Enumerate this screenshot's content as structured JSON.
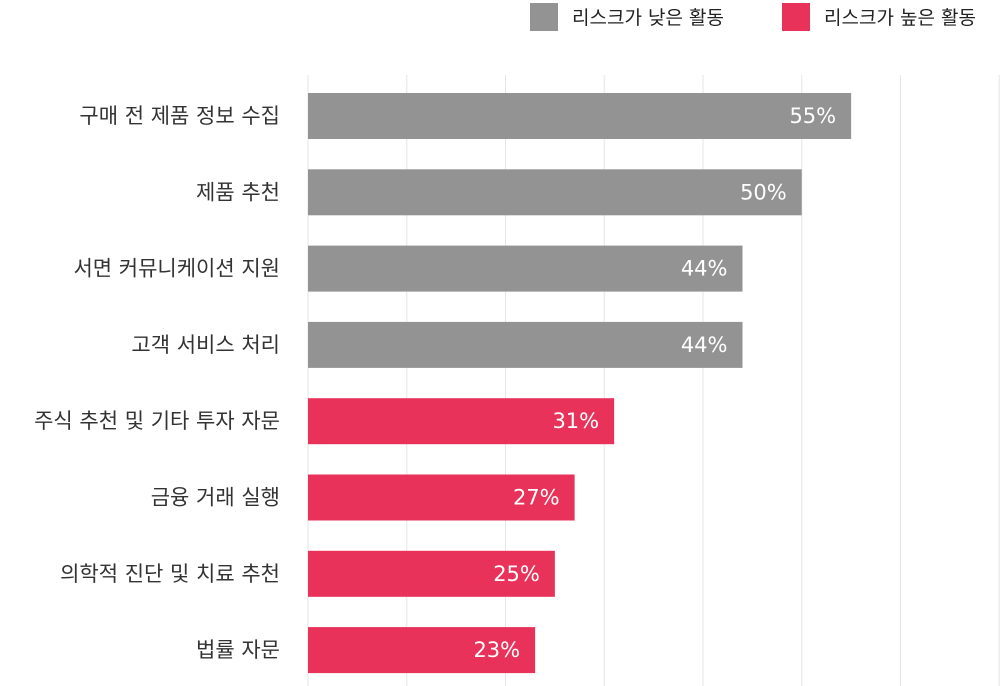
{
  "chart_data": {
    "type": "bar",
    "orientation": "horizontal",
    "categories": [
      "구매 전 제품 정보 수집",
      "제품 추천",
      "서면 커뮤니케이션 지원",
      "고객 서비스 처리",
      "주식 추천 및 기타 투자 자문",
      "금융 거래 실행",
      "의학적 진단 및 치료 추천",
      "법률 자문"
    ],
    "values": [
      55,
      50,
      44,
      44,
      31,
      27,
      25,
      23
    ],
    "value_labels": [
      "55%",
      "50%",
      "44%",
      "44%",
      "31%",
      "27%",
      "25%",
      "23%"
    ],
    "groups": [
      "low",
      "low",
      "low",
      "low",
      "high",
      "high",
      "high",
      "high"
    ],
    "legend": [
      {
        "key": "low",
        "label": "리스크가 낮은 활동",
        "color": "#939393"
      },
      {
        "key": "high",
        "label": "리스크가 높은 활동",
        "color": "#e8325a"
      }
    ],
    "legend_position": "top-right",
    "xlim": [
      0,
      70
    ],
    "grid": true,
    "title": "",
    "xlabel": "",
    "ylabel": ""
  },
  "colors": {
    "grid": "#e6e6e6",
    "category_text": "#333333",
    "value_text": "#ffffff"
  }
}
